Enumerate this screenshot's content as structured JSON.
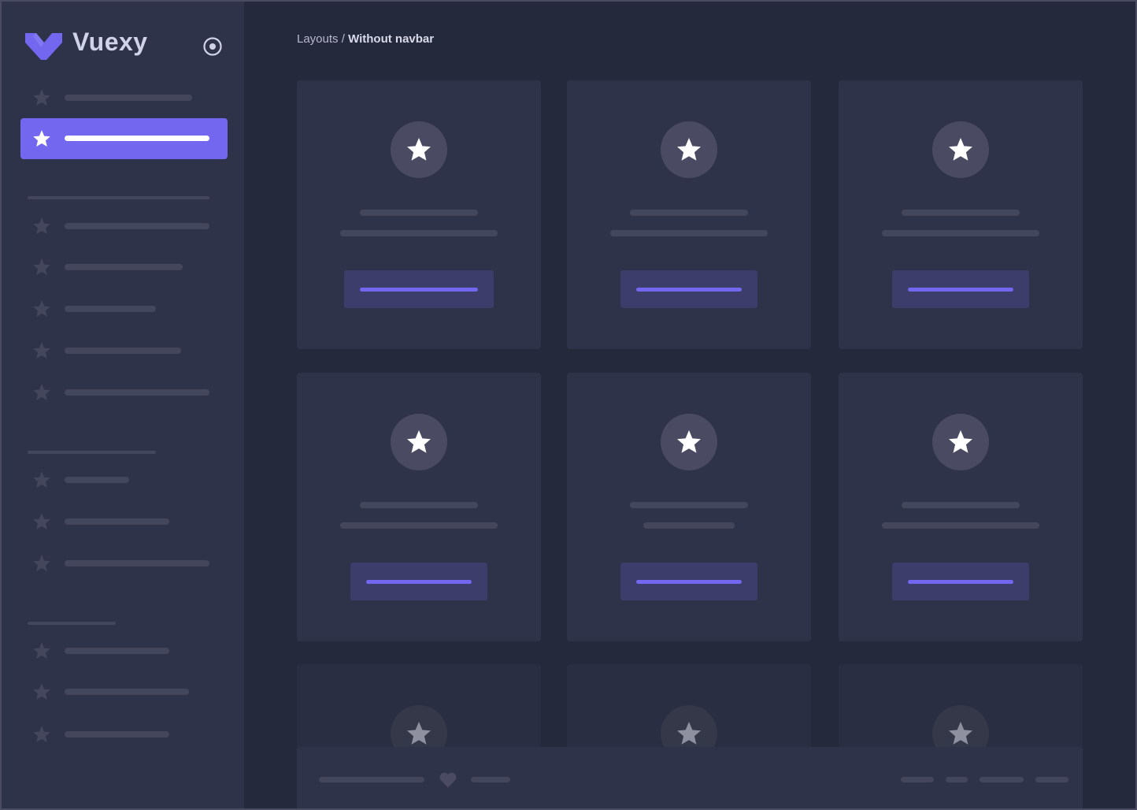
{
  "brand": {
    "name": "Vuexy",
    "logo_color": "#7367f0",
    "toggle_icon": "radio-circle-icon"
  },
  "breadcrumb": {
    "parent": "Layouts",
    "separator": " / ",
    "current": "Without navbar"
  },
  "colors": {
    "accent": "#7367f0",
    "sidebar_bg": "#2f3349",
    "main_bg": "#25293c",
    "card_bg": "#2f3349",
    "skeleton": "#44465c"
  },
  "sidebar": {
    "active_index": 1,
    "item_icon": "star-icon"
  },
  "cards": {
    "count": 9,
    "icon": "star-icon"
  },
  "footer": {
    "icon": "heart-icon"
  }
}
